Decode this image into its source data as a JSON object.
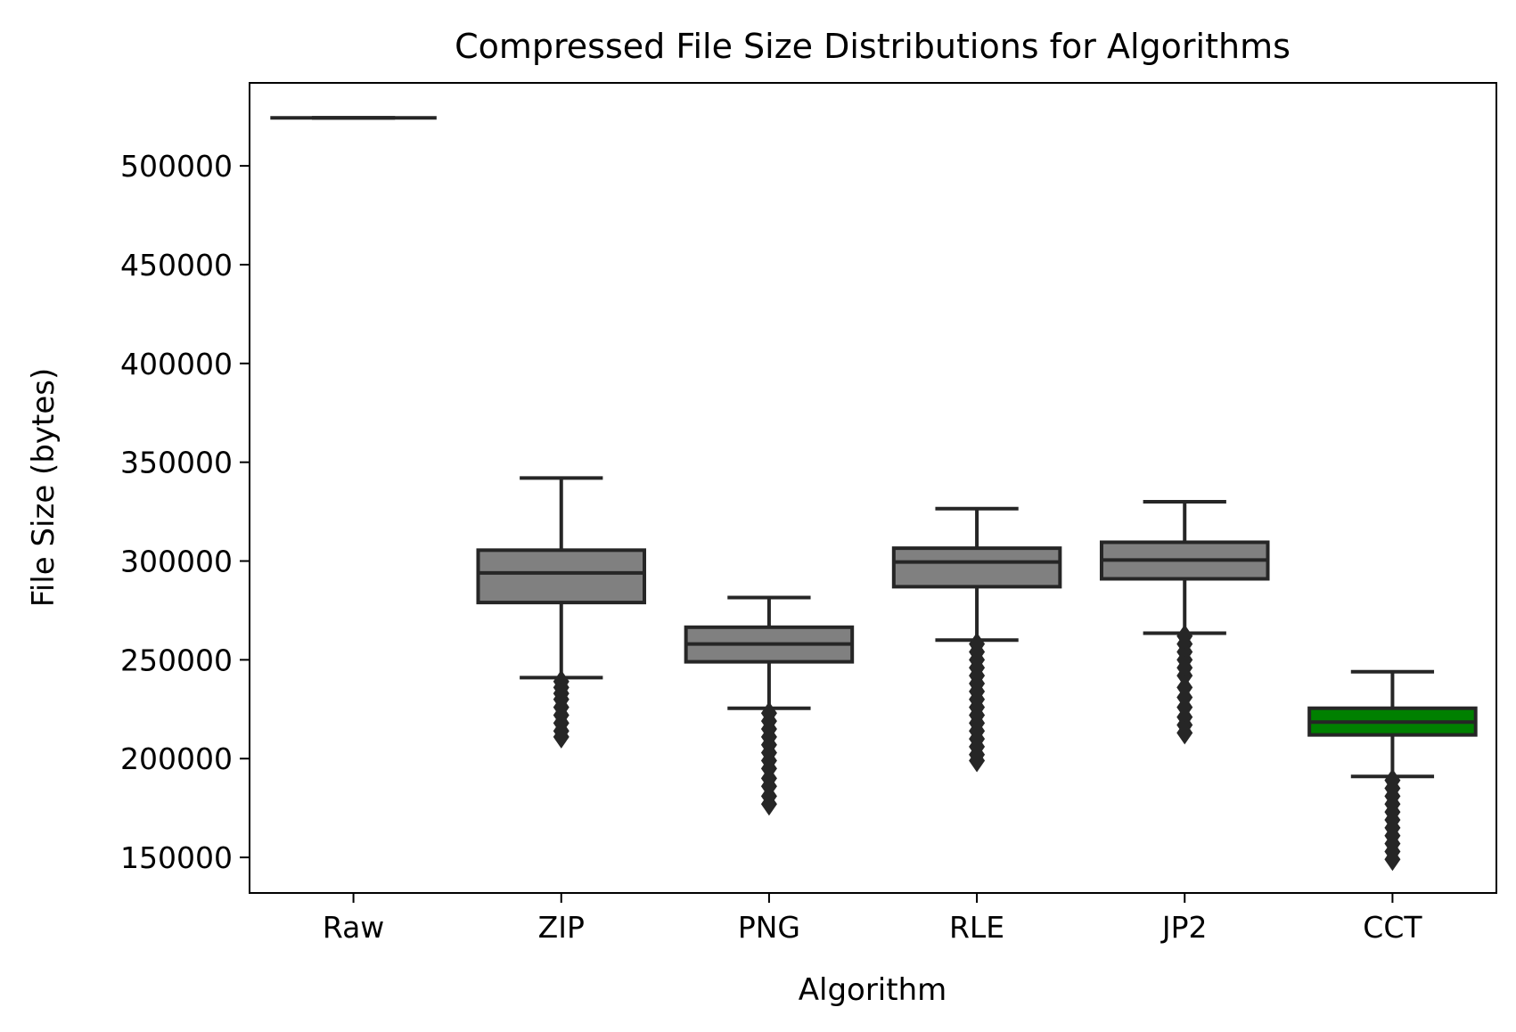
{
  "chart_data": {
    "type": "box",
    "title": "Compressed File Size Distributions for Algorithms",
    "xlabel": "Algorithm",
    "ylabel": "File Size (bytes)",
    "categories": [
      "Raw",
      "ZIP",
      "PNG",
      "RLE",
      "JP2",
      "CCT"
    ],
    "ylim": [
      132000,
      542000
    ],
    "yticks": [
      150000,
      200000,
      250000,
      300000,
      350000,
      400000,
      450000,
      500000
    ],
    "ytick_labels": [
      "150000",
      "200000",
      "250000",
      "300000",
      "350000",
      "400000",
      "450000",
      "500000"
    ],
    "grid": false,
    "legend": "none",
    "box_color": "#808080",
    "highlight_color": "#008000",
    "line_color": "#262626",
    "boxes": [
      {
        "name": "Raw",
        "whislo": 524288,
        "q1": 524288,
        "median": 524288,
        "q3": 524288,
        "whishi": 524288,
        "fliers": [],
        "color": "#808080"
      },
      {
        "name": "ZIP",
        "whislo": 241000,
        "q1": 279000,
        "median": 294000,
        "q3": 305500,
        "whishi": 342000,
        "fliers": [
          239000,
          236000,
          233000,
          230000,
          226000,
          222000,
          218000,
          214000,
          211000
        ],
        "color": "#808080"
      },
      {
        "name": "PNG",
        "whislo": 225500,
        "q1": 249000,
        "median": 258000,
        "q3": 266500,
        "whishi": 281500,
        "fliers": [
          223000,
          219000,
          215000,
          211000,
          207000,
          203000,
          199000,
          195000,
          190000,
          186000,
          181000,
          177000
        ],
        "color": "#808080"
      },
      {
        "name": "RLE",
        "whislo": 260000,
        "q1": 287000,
        "median": 299500,
        "q3": 306500,
        "whishi": 326500,
        "fliers": [
          258000,
          254000,
          250000,
          246000,
          242000,
          238000,
          234000,
          230000,
          226000,
          222000,
          218000,
          214000,
          210000,
          206000,
          202000,
          199000
        ],
        "color": "#808080"
      },
      {
        "name": "JP2",
        "whislo": 263500,
        "q1": 291000,
        "median": 300500,
        "q3": 309500,
        "whishi": 330000,
        "fliers": [
          262000,
          258000,
          254000,
          250000,
          246000,
          242000,
          236000,
          231000,
          226000,
          221000,
          217000,
          213000
        ],
        "color": "#808080"
      },
      {
        "name": "CCT",
        "whislo": 191000,
        "q1": 212000,
        "median": 218500,
        "q3": 225500,
        "whishi": 244000,
        "fliers": [
          189000,
          185000,
          181000,
          177000,
          173000,
          169000,
          165000,
          161000,
          157000,
          153000,
          149000
        ],
        "color": "#008000"
      }
    ]
  }
}
